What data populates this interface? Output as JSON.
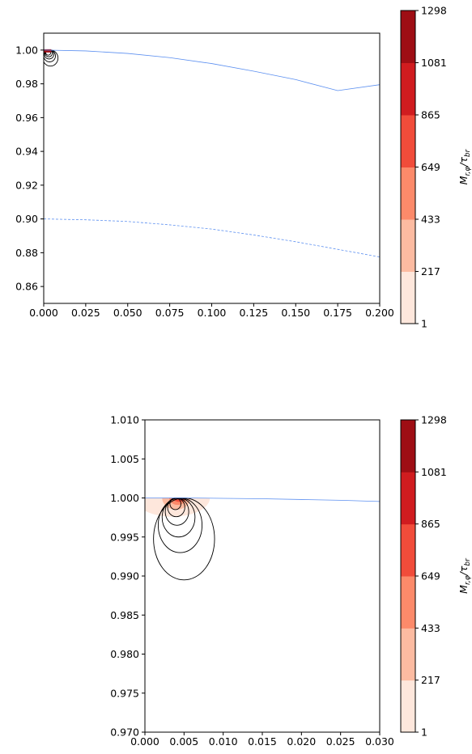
{
  "chart_data": [
    {
      "type": "contour",
      "title": "",
      "xlabel": "",
      "ylabel": "",
      "xlim": [
        0.0,
        0.2
      ],
      "ylim": [
        0.85,
        1.01
      ],
      "xticks": [
        "0.000",
        "0.025",
        "0.050",
        "0.075",
        "0.100",
        "0.125",
        "0.150",
        "0.175",
        "0.200"
      ],
      "xtick_values": [
        0.0,
        0.025,
        0.05,
        0.075,
        0.1,
        0.125,
        0.15,
        0.175,
        0.2
      ],
      "yticks": [
        "0.86",
        "0.88",
        "0.90",
        "0.92",
        "0.94",
        "0.96",
        "0.98",
        "1.00"
      ],
      "ytick_values": [
        0.86,
        0.88,
        0.9,
        0.92,
        0.94,
        0.96,
        0.98,
        1.0
      ],
      "series": [
        {
          "style": "solid",
          "x": [
            0.0,
            0.025,
            0.05,
            0.075,
            0.1,
            0.125,
            0.15,
            0.175,
            0.2
          ],
          "y": [
            1.0,
            0.9995,
            0.998,
            0.9955,
            0.992,
            0.9875,
            0.9825,
            0.976,
            0.9795
          ]
        },
        {
          "style": "dashed",
          "x": [
            0.0,
            0.025,
            0.05,
            0.075,
            0.1,
            0.125,
            0.15,
            0.175,
            0.2
          ],
          "y": [
            0.9,
            0.8995,
            0.8985,
            0.8965,
            0.894,
            0.8905,
            0.8865,
            0.882,
            0.8775
          ]
        }
      ],
      "contours": [
        {
          "cx": 0.004,
          "top": 1.0,
          "bottom": 0.9905,
          "halfwidth": 0.0045
        },
        {
          "cx": 0.0035,
          "top": 1.0,
          "bottom": 0.993,
          "halfwidth": 0.0035
        },
        {
          "cx": 0.0032,
          "top": 1.0,
          "bottom": 0.9947,
          "halfwidth": 0.0028
        },
        {
          "cx": 0.003,
          "top": 1.0,
          "bottom": 0.996,
          "halfwidth": 0.0021
        },
        {
          "cx": 0.0027,
          "top": 1.0,
          "bottom": 0.997,
          "halfwidth": 0.0015
        }
      ],
      "colorbar": {
        "label": "M_{r,φ}/τ_{br}",
        "ticks": [
          "1",
          "217",
          "433",
          "649",
          "865",
          "1081",
          "1298"
        ],
        "colors": [
          "#fee7dc",
          "#fcbba1",
          "#fc8a6a",
          "#f14c3a",
          "#d01c1f",
          "#9e0e14"
        ]
      }
    },
    {
      "type": "contour",
      "title": "",
      "xlabel": "",
      "ylabel": "",
      "xlim": [
        0.0,
        0.03
      ],
      "ylim": [
        0.97,
        1.01
      ],
      "xticks": [
        "0.000",
        "0.005",
        "0.010",
        "0.015",
        "0.020",
        "0.025",
        "0.030"
      ],
      "xtick_values": [
        0.0,
        0.005,
        0.01,
        0.015,
        0.02,
        0.025,
        0.03
      ],
      "yticks": [
        "0.970",
        "0.975",
        "0.980",
        "0.985",
        "0.990",
        "0.995",
        "1.000",
        "1.005",
        "1.010"
      ],
      "ytick_values": [
        0.97,
        0.975,
        0.98,
        0.985,
        0.99,
        0.995,
        1.0,
        1.005,
        1.01
      ],
      "series": [
        {
          "style": "solid",
          "x": [
            0.0,
            0.005,
            0.01,
            0.015,
            0.02,
            0.025,
            0.03
          ],
          "y": [
            1.0,
            1.0,
            0.99995,
            0.9999,
            0.9998,
            0.9997,
            0.99955
          ]
        }
      ],
      "contours": [
        {
          "cx": 0.005,
          "top": 1.0,
          "bottom": 0.9895,
          "halfwidth": 0.0039
        },
        {
          "cx": 0.0045,
          "top": 1.0,
          "bottom": 0.993,
          "halfwidth": 0.0028
        },
        {
          "cx": 0.0043,
          "top": 1.0,
          "bottom": 0.995,
          "halfwidth": 0.0021
        },
        {
          "cx": 0.0041,
          "top": 1.0,
          "bottom": 0.9965,
          "halfwidth": 0.0015
        },
        {
          "cx": 0.004,
          "top": 1.0,
          "bottom": 0.9976,
          "halfwidth": 0.0011
        },
        {
          "cx": 0.0039,
          "top": 1.0,
          "bottom": 0.9985,
          "halfwidth": 0.0007
        }
      ],
      "filled": [
        {
          "cx": 0.0035,
          "top": 1.0,
          "bottom": 0.9976,
          "halfwidth": 0.0048,
          "level": 0
        },
        {
          "cx": 0.004,
          "top": 1.0,
          "bottom": 0.9985,
          "halfwidth": 0.0018,
          "level": 1
        },
        {
          "cx": 0.0042,
          "top": 1.0,
          "bottom": 0.9991,
          "halfwidth": 0.0011,
          "level": 2
        },
        {
          "cx": 0.0044,
          "top": 1.0,
          "bottom": 0.9995,
          "halfwidth": 0.0008,
          "level": 3
        },
        {
          "cx": 0.0046,
          "top": 1.0,
          "bottom": 0.99975,
          "halfwidth": 0.0005,
          "level": 4
        }
      ],
      "colorbar": {
        "label": "M_{r,φ}/τ_{br}",
        "ticks": [
          "1",
          "217",
          "433",
          "649",
          "865",
          "1081",
          "1298"
        ],
        "colors": [
          "#fee7dc",
          "#fcbba1",
          "#fc8a6a",
          "#f14c3a",
          "#d01c1f",
          "#9e0e14"
        ]
      }
    }
  ]
}
